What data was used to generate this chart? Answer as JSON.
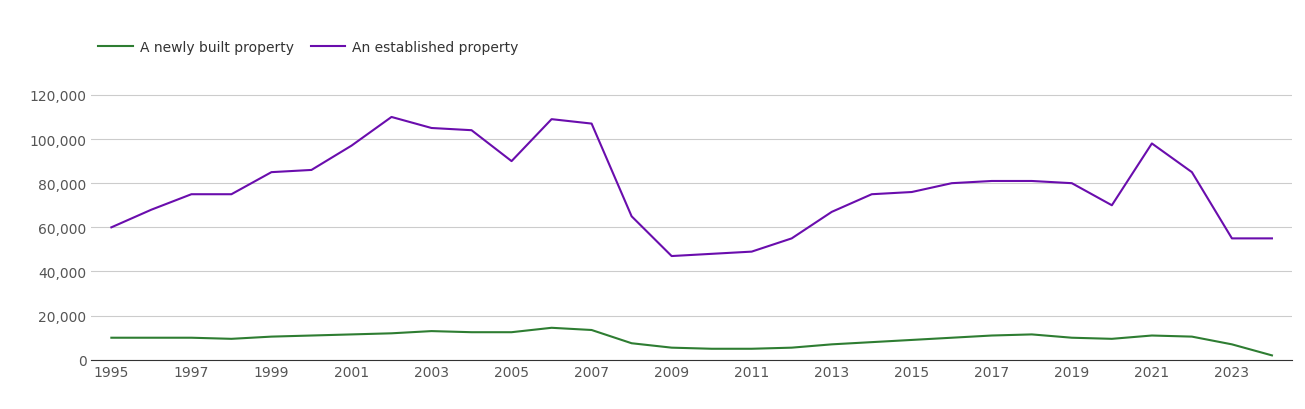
{
  "years": [
    1995,
    1996,
    1997,
    1998,
    1999,
    2000,
    2001,
    2002,
    2003,
    2004,
    2005,
    2006,
    2007,
    2008,
    2009,
    2010,
    2011,
    2012,
    2013,
    2014,
    2015,
    2016,
    2017,
    2018,
    2019,
    2020,
    2021,
    2022,
    2023,
    2024
  ],
  "newly_built": [
    10000,
    10000,
    10000,
    9500,
    10500,
    11000,
    11500,
    12000,
    13000,
    12500,
    12500,
    14500,
    13500,
    7500,
    5500,
    5000,
    5000,
    5500,
    7000,
    8000,
    9000,
    10000,
    11000,
    11500,
    10000,
    9500,
    11000,
    10500,
    7000,
    2000
  ],
  "established": [
    60000,
    68000,
    75000,
    75000,
    85000,
    86000,
    97000,
    110000,
    105000,
    104000,
    90000,
    109000,
    107000,
    65000,
    47000,
    48000,
    49000,
    55000,
    67000,
    75000,
    76000,
    80000,
    81000,
    81000,
    80000,
    70000,
    98000,
    85000,
    55000,
    55000
  ],
  "newly_built_color": "#2e7d32",
  "established_color": "#6a0dad",
  "legend_newly": "A newly built property",
  "legend_established": "An established property",
  "ylim": [
    0,
    130000
  ],
  "yticks": [
    0,
    20000,
    40000,
    60000,
    80000,
    100000,
    120000
  ],
  "xtick_start": 1995,
  "xtick_end": 2023,
  "xtick_step": 2,
  "bg_color": "#ffffff",
  "grid_color": "#cccccc",
  "line_width": 1.5,
  "tick_label_color": "#555555",
  "legend_text_color": "#333333",
  "tick_fontsize": 10
}
